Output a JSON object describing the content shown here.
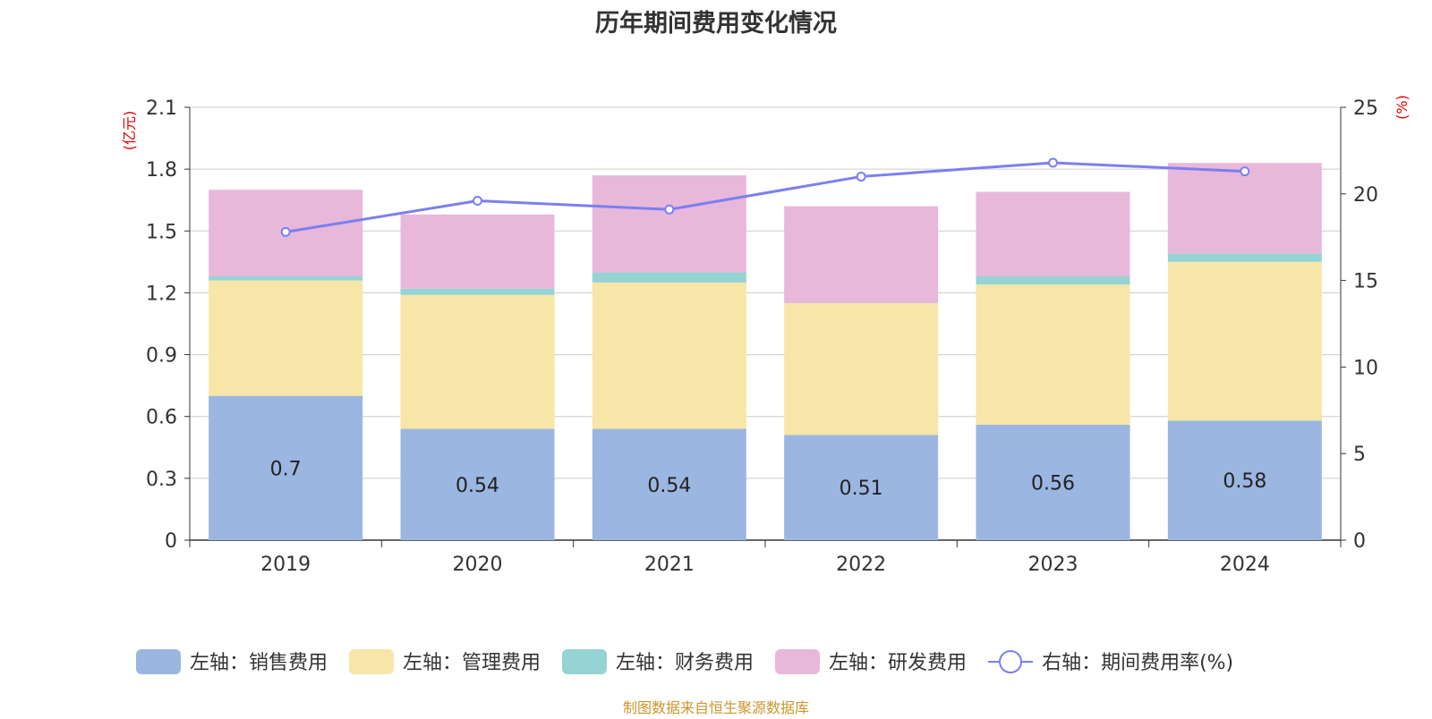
{
  "chart_data": {
    "type": "bar",
    "title": "历年期间费用变化情况",
    "categories": [
      "2019",
      "2020",
      "2021",
      "2022",
      "2023",
      "2024"
    ],
    "y_left": {
      "label": "(亿元)",
      "ylim": [
        0,
        2.1
      ],
      "ticks": [
        "0",
        "0.3",
        "0.6",
        "0.9",
        "1.2",
        "1.5",
        "1.8",
        "2.1"
      ]
    },
    "y_right": {
      "label": "(%)",
      "ylim": [
        0,
        25
      ],
      "ticks": [
        "0",
        "5",
        "10",
        "15",
        "20",
        "25"
      ]
    },
    "grid": true,
    "legend_position": "bottom",
    "series": [
      {
        "name": "左轴：销售费用",
        "kind": "bar",
        "axis": "left",
        "color": "#9bb6e0",
        "values": [
          0.7,
          0.54,
          0.54,
          0.51,
          0.56,
          0.58
        ],
        "labels": [
          "0.7",
          "0.54",
          "0.54",
          "0.51",
          "0.56",
          "0.58"
        ]
      },
      {
        "name": "左轴：管理费用",
        "kind": "bar",
        "axis": "left",
        "color": "#f7e6a8",
        "values": [
          0.56,
          0.65,
          0.71,
          0.64,
          0.68,
          0.77
        ]
      },
      {
        "name": "左轴：财务费用",
        "kind": "bar",
        "axis": "left",
        "color": "#95d3d4",
        "values": [
          0.02,
          0.03,
          0.05,
          0.0,
          0.04,
          0.04
        ]
      },
      {
        "name": "左轴：研发费用",
        "kind": "bar",
        "axis": "left",
        "color": "#e8b8da",
        "values": [
          0.42,
          0.36,
          0.47,
          0.47,
          0.41,
          0.44
        ]
      },
      {
        "name": "右轴：期间费用率(%)",
        "kind": "line",
        "axis": "right",
        "color": "#7b7ff0",
        "values": [
          17.8,
          19.6,
          19.1,
          21.0,
          21.8,
          21.3
        ]
      }
    ]
  },
  "source_note": {
    "text": "制图数据来自恒生聚源数据库",
    "color": "#c8962e"
  }
}
